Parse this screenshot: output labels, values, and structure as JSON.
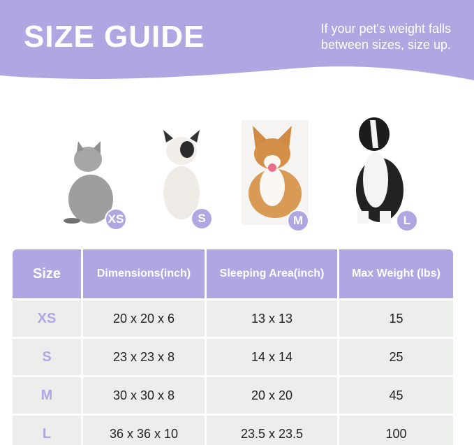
{
  "header": {
    "title": "SIZE GUIDE",
    "note_line1": "If your pet's weight falls",
    "note_line2": "between sizes, size up.",
    "color": "#b0a6e2"
  },
  "pets": [
    {
      "animal": "cat",
      "badge": "XS"
    },
    {
      "animal": "french-bulldog",
      "badge": "S"
    },
    {
      "animal": "corgi",
      "badge": "M"
    },
    {
      "animal": "border-collie",
      "badge": "L"
    }
  ],
  "table": {
    "headers": [
      "Size",
      "Dimensions(inch)",
      "Sleeping Area(inch)",
      "Max Weight (lbs)"
    ],
    "rows": [
      [
        "XS",
        "20 x 20 x 6",
        "13 x 13",
        "15"
      ],
      [
        "S",
        "23 x 23 x 8",
        "14 x 14",
        "25"
      ],
      [
        "M",
        "30 x 30 x 8",
        "20 x 20",
        "45"
      ],
      [
        "L",
        "36 x 36 x 10",
        "23.5 x 23.5",
        "100"
      ]
    ]
  }
}
